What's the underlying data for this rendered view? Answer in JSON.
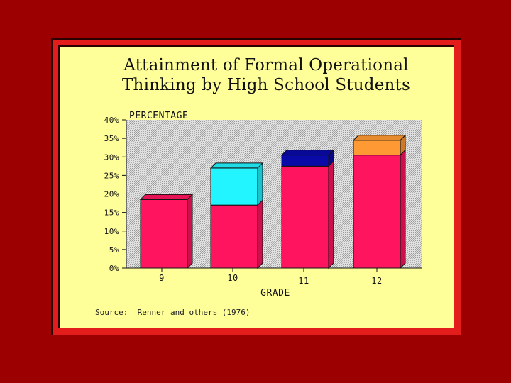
{
  "title_lines": [
    "Attainment of Formal Operational",
    "Thinking by High School Students"
  ],
  "source": "Source:  Renner and others (1976)",
  "chart_data": {
    "type": "bar",
    "stacked": true,
    "title": "Attainment of Formal Operational Thinking by High School Students",
    "ylabel": "PERCENTAGE",
    "xlabel": "GRADE",
    "ylim": [
      0,
      40
    ],
    "yticks": [
      0,
      5,
      10,
      15,
      20,
      25,
      30,
      35,
      40
    ],
    "ytick_labels": [
      "0%",
      "5%",
      "10%",
      "15%",
      "20%",
      "25%",
      "30%",
      "35%",
      "40%"
    ],
    "categories": [
      "9",
      "10",
      "11",
      "12"
    ],
    "series": [
      {
        "values": [
          18.5,
          17,
          27.5,
          30.5
        ],
        "color": "#ff1460"
      },
      {
        "values": [
          0,
          10,
          0,
          0
        ],
        "color": "#22f5ff"
      },
      {
        "values": [
          0,
          0,
          3,
          0
        ],
        "color": "#0a0aa8"
      },
      {
        "values": [
          0,
          0,
          0,
          4
        ],
        "color": "#ff9933"
      }
    ],
    "grid": false,
    "background_color": "#c8c8c8"
  }
}
